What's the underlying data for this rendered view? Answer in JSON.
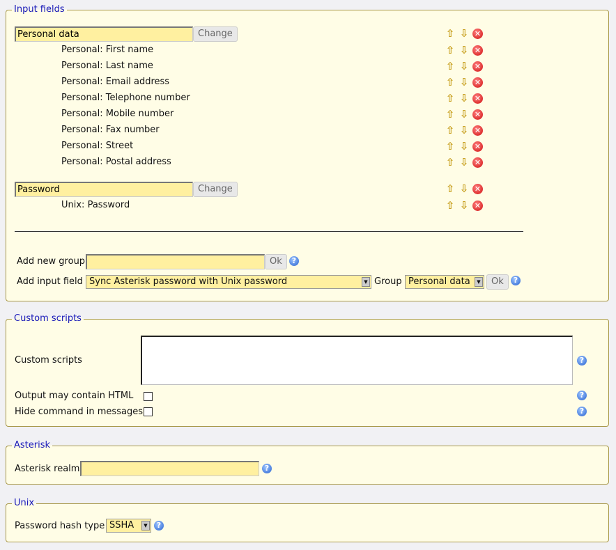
{
  "input_fields": {
    "legend": "Input fields",
    "groups": [
      {
        "name": "Personal data",
        "change_label": "Change",
        "items": [
          "Personal: First name",
          "Personal: Last name",
          "Personal: Email address",
          "Personal: Telephone number",
          "Personal: Mobile number",
          "Personal: Fax number",
          "Personal: Street",
          "Personal: Postal address"
        ]
      },
      {
        "name": "Password",
        "change_label": "Change",
        "items": [
          "Unix: Password"
        ]
      }
    ],
    "add_group_label": "Add new group",
    "add_group_value": "",
    "ok_label": "Ok",
    "add_field_label": "Add input field",
    "add_field_value": "Sync Asterisk password with Unix password",
    "group_label": "Group",
    "group_value": "Personal data"
  },
  "custom_scripts": {
    "legend": "Custom scripts",
    "scripts_label": "Custom scripts",
    "scripts_value": "",
    "html_label": "Output may contain HTML",
    "html_checked": false,
    "hide_label": "Hide command in messages",
    "hide_checked": false
  },
  "asterisk": {
    "legend": "Asterisk",
    "realm_label": "Asterisk realm",
    "realm_value": ""
  },
  "unix": {
    "legend": "Unix",
    "hash_label": "Password hash type",
    "hash_value": "SSHA"
  },
  "icons": {
    "up": "arrow-up-icon",
    "down": "arrow-down-icon",
    "delete": "delete-icon",
    "help": "help-icon"
  }
}
